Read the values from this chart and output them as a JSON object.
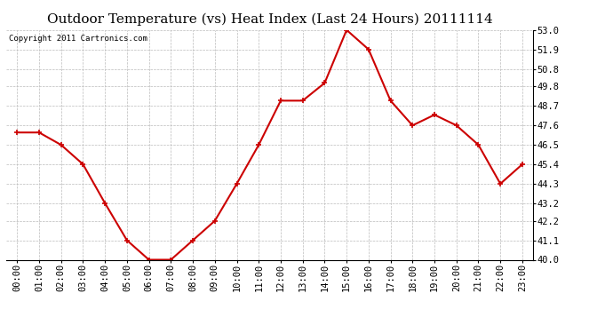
{
  "title": "Outdoor Temperature (vs) Heat Index (Last 24 Hours) 20111114",
  "copyright_text": "Copyright 2011 Cartronics.com",
  "x_labels": [
    "00:00",
    "01:00",
    "02:00",
    "03:00",
    "04:00",
    "05:00",
    "06:00",
    "07:00",
    "08:00",
    "09:00",
    "10:00",
    "11:00",
    "12:00",
    "13:00",
    "14:00",
    "15:00",
    "16:00",
    "17:00",
    "18:00",
    "19:00",
    "20:00",
    "21:00",
    "22:00",
    "23:00"
  ],
  "y_values": [
    47.2,
    47.2,
    46.5,
    45.4,
    43.2,
    41.1,
    40.0,
    40.0,
    41.1,
    42.2,
    44.3,
    46.5,
    49.0,
    49.0,
    50.0,
    53.0,
    51.9,
    49.0,
    47.6,
    48.2,
    47.6,
    46.5,
    44.3,
    45.4
  ],
  "line_color": "#cc0000",
  "marker": "+",
  "marker_size": 5,
  "marker_color": "#cc0000",
  "bg_color": "#ffffff",
  "plot_bg_color": "#ffffff",
  "grid_color": "#bbbbbb",
  "title_fontsize": 11,
  "copyright_fontsize": 6.5,
  "tick_fontsize": 7.5,
  "ylim": [
    40.0,
    53.0
  ],
  "yticks": [
    40.0,
    41.1,
    42.2,
    43.2,
    44.3,
    45.4,
    46.5,
    47.6,
    48.7,
    49.8,
    50.8,
    51.9,
    53.0
  ],
  "line_width": 1.5
}
